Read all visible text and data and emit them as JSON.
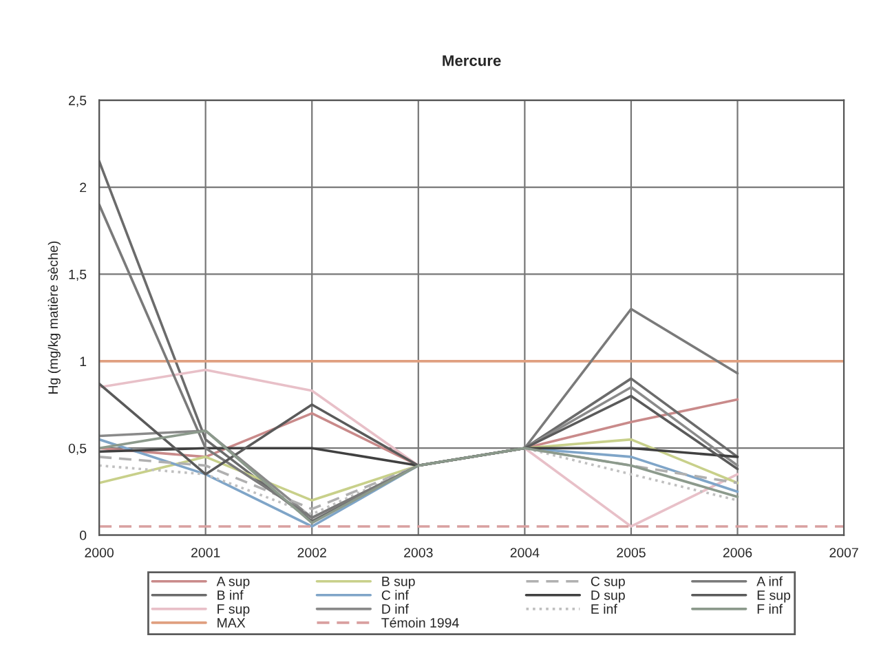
{
  "chart_data": {
    "type": "line",
    "title": "Mercure",
    "ylabel": "Hg (mg/kg matière sèche)",
    "xlim": [
      2000,
      2007
    ],
    "xticks": [
      2000,
      2001,
      2002,
      2003,
      2004,
      2005,
      2006,
      2007
    ],
    "ylim": [
      0,
      2.5
    ],
    "yticks": [
      {
        "value": 0,
        "label": "0"
      },
      {
        "value": 0.5,
        "label": "0,5"
      },
      {
        "value": 1,
        "label": "1"
      },
      {
        "value": 1.5,
        "label": "1,5"
      },
      {
        "value": 2,
        "label": "2"
      },
      {
        "value": 2.5,
        "label": "2,5"
      }
    ],
    "grid": true,
    "legend": "bottom",
    "marker": "none",
    "series": [
      {
        "name": "A sup",
        "color": "#c98a8a",
        "x": [
          2000,
          2001,
          2002,
          2003,
          2004,
          2005,
          2006
        ],
        "values": [
          0.5,
          0.45,
          0.7,
          0.4,
          0.5,
          0.65,
          0.78
        ]
      },
      {
        "name": "B inf",
        "color": "#6b6b6b",
        "x": [
          2000,
          2001,
          2002,
          2003,
          2004,
          2005,
          2006
        ],
        "values": [
          2.15,
          0.55,
          0.08,
          0.4,
          0.5,
          0.9,
          0.45
        ]
      },
      {
        "name": "F sup",
        "color": "#e8c0c8",
        "x": [
          2000,
          2001,
          2002,
          2003,
          2004,
          2005,
          2006
        ],
        "values": [
          0.85,
          0.95,
          0.83,
          0.4,
          0.5,
          0.05,
          0.35
        ]
      },
      {
        "name": "MAX",
        "color": "#e0a080",
        "x": [
          2000,
          2001,
          2002,
          2003,
          2004,
          2005,
          2006,
          2007
        ],
        "values": [
          1,
          1,
          1,
          1,
          1,
          1,
          1,
          1
        ]
      },
      {
        "name": "B sup",
        "color": "#c8d08a",
        "x": [
          2000,
          2001,
          2002,
          2003,
          2004,
          2005,
          2006
        ],
        "values": [
          0.3,
          0.45,
          0.2,
          0.4,
          0.5,
          0.55,
          0.3
        ]
      },
      {
        "name": "C inf",
        "color": "#7fa5c8",
        "x": [
          2000,
          2001,
          2002,
          2003,
          2004,
          2005,
          2006
        ],
        "values": [
          0.55,
          0.35,
          0.05,
          0.4,
          0.5,
          0.45,
          0.25
        ]
      },
      {
        "name": "D inf",
        "color": "#8a8a8a",
        "x": [
          2000,
          2001,
          2002,
          2003,
          2004,
          2005,
          2006
        ],
        "values": [
          0.57,
          0.6,
          0.1,
          0.4,
          0.5,
          0.85,
          0.4
        ]
      },
      {
        "name": "Témoin 1994",
        "color": "#d9a0a0",
        "line_style": "dashed",
        "x": [
          2000,
          2001,
          2002,
          2003,
          2004,
          2005,
          2006,
          2007
        ],
        "values": [
          0.05,
          0.05,
          0.05,
          0.05,
          0.05,
          0.05,
          0.05,
          0.05
        ]
      },
      {
        "name": "C sup",
        "color": "#b0b0b0",
        "line_style": "dashed",
        "x": [
          2000,
          2001,
          2002,
          2003,
          2004,
          2005,
          2006
        ],
        "values": [
          0.45,
          0.4,
          0.15,
          0.4,
          0.5,
          0.4,
          0.3
        ]
      },
      {
        "name": "D sup",
        "color": "#404040",
        "x": [
          2000,
          2001,
          2002,
          2003,
          2004,
          2005,
          2006
        ],
        "values": [
          0.48,
          0.5,
          0.5,
          0.4,
          0.5,
          0.5,
          0.45
        ]
      },
      {
        "name": "E inf",
        "color": "#c0c0c0",
        "line_style": "dotted",
        "x": [
          2000,
          2001,
          2002,
          2003,
          2004,
          2005,
          2006
        ],
        "values": [
          0.4,
          0.35,
          0.12,
          0.4,
          0.5,
          0.35,
          0.2
        ]
      },
      {
        "name": "A inf",
        "color": "#7a7a7a",
        "x": [
          2000,
          2001,
          2002,
          2003,
          2004,
          2005,
          2006
        ],
        "values": [
          1.9,
          0.5,
          0.1,
          0.4,
          0.5,
          1.3,
          0.93
        ]
      },
      {
        "name": "E sup",
        "color": "#5a5a5a",
        "x": [
          2000,
          2001,
          2002,
          2003,
          2004,
          2005,
          2006
        ],
        "values": [
          0.87,
          0.35,
          0.75,
          0.4,
          0.5,
          0.8,
          0.38
        ]
      },
      {
        "name": "F inf",
        "color": "#8c9a8c",
        "x": [
          2000,
          2001,
          2002,
          2003,
          2004,
          2005,
          2006
        ],
        "values": [
          0.5,
          0.6,
          0.07,
          0.4,
          0.5,
          0.4,
          0.22
        ]
      }
    ]
  }
}
